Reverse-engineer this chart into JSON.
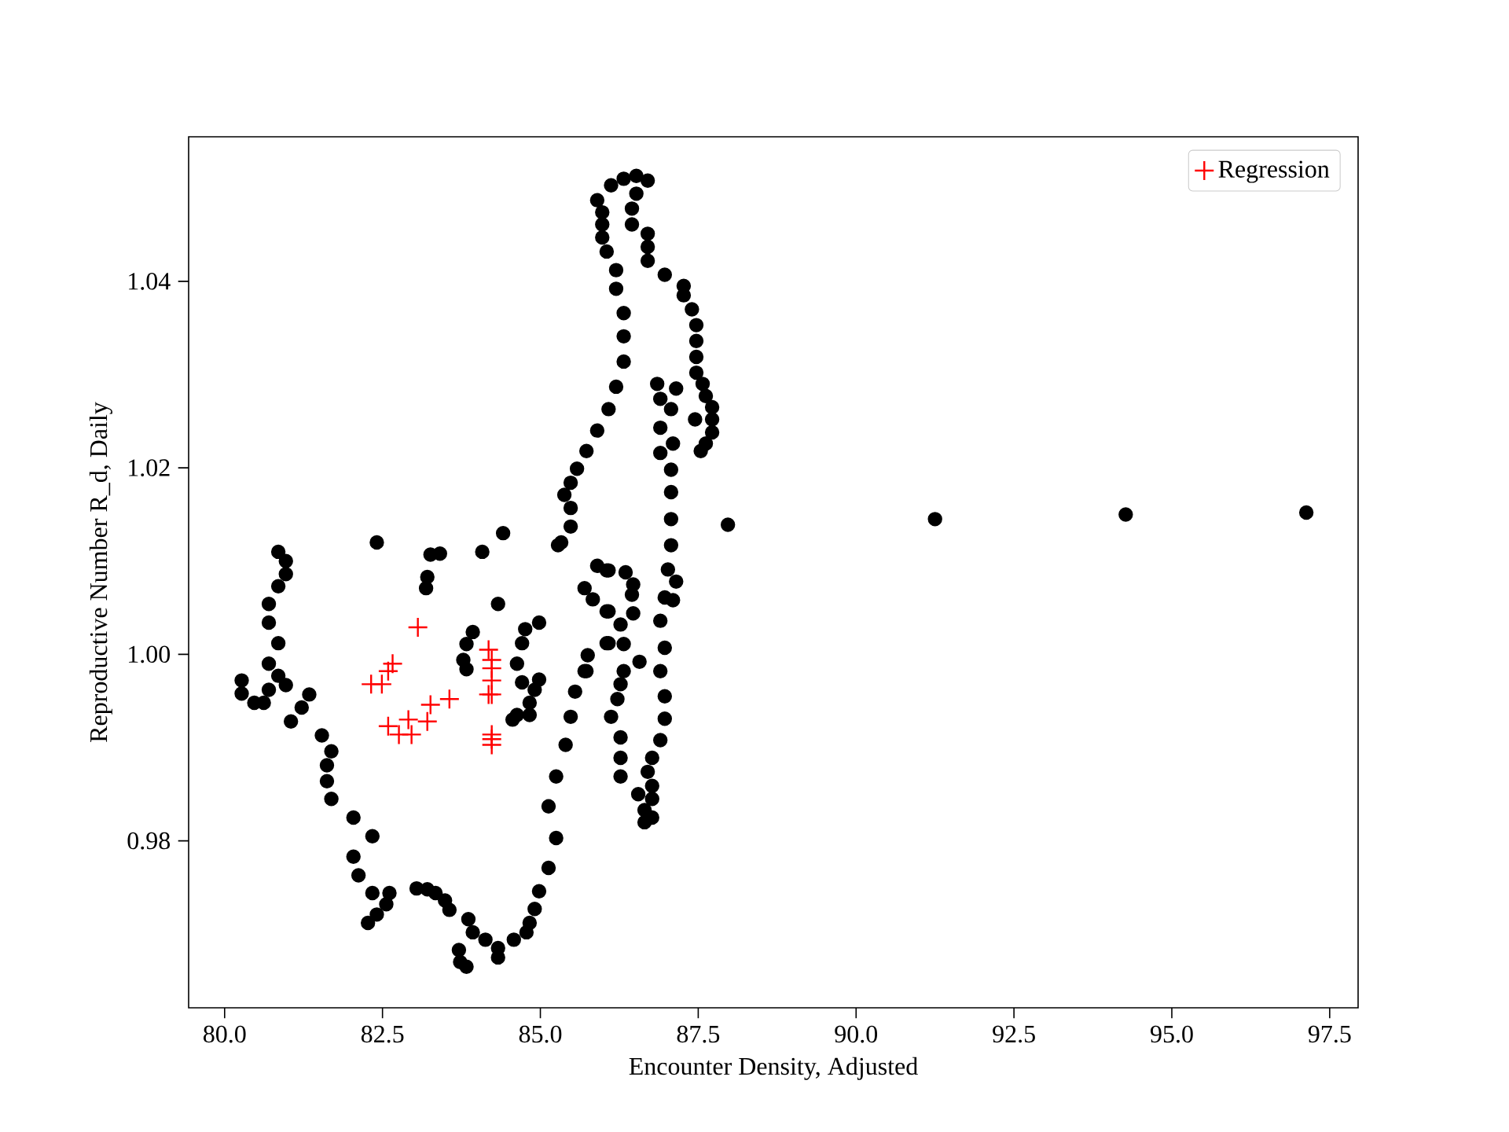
{
  "chart_data": {
    "type": "scatter",
    "xlabel": "Encounter Density, Adjusted",
    "ylabel": "Reproductive Number R_d, Daily",
    "xlim": [
      79.43,
      97.95
    ],
    "ylim": [
      0.9621,
      1.0555
    ],
    "xticks": [
      {
        "value": 80,
        "label": "80.0"
      },
      {
        "value": 82.5,
        "label": "82.5"
      },
      {
        "value": 85,
        "label": "85.0"
      },
      {
        "value": 87.5,
        "label": "87.5"
      },
      {
        "value": 90,
        "label": "90.0"
      },
      {
        "value": 92.5,
        "label": "92.5"
      },
      {
        "value": 95,
        "label": "95.0"
      },
      {
        "value": 97.5,
        "label": "97.5"
      }
    ],
    "yticks": [
      0.98,
      {
        "value": 1.0,
        "label": "1.00"
      },
      1.02,
      1.04
    ],
    "legend": "top right",
    "grid": false,
    "series": [
      {
        "color": "#000000",
        "marker": "circle",
        "x": [
          80.85,
          80.97,
          80.97,
          80.85,
          80.7,
          80.7,
          80.85,
          80.7,
          80.85,
          80.97,
          80.27,
          80.27,
          80.47,
          80.62,
          80.7,
          81.22,
          81.34,
          81.05,
          81.54,
          81.69,
          81.62,
          81.62,
          81.69,
          82.04,
          82.34,
          82.04,
          82.12,
          82.34,
          82.61,
          82.56,
          82.41,
          82.27,
          83.04,
          83.21,
          83.34,
          83.49,
          83.56,
          83.71,
          83.73,
          83.83,
          83.86,
          83.93,
          84.13,
          84.33,
          84.33,
          84.58,
          84.78,
          84.83,
          84.91,
          84.98,
          85.13,
          85.25,
          85.13,
          85.25,
          85.4,
          85.48,
          85.55,
          85.7,
          85.75,
          86.05,
          86.05,
          85.83,
          85.7,
          86.05,
          85.9,
          82.41,
          83.26,
          83.41,
          83.21,
          83.19,
          84.08,
          84.41,
          84.33,
          83.93,
          83.83,
          83.78,
          83.83,
          84.98,
          84.76,
          84.71,
          84.63,
          84.71,
          84.98,
          84.91,
          84.83,
          84.83,
          84.63,
          84.56,
          85.33,
          85.38,
          85.48,
          85.48,
          85.28,
          87.07,
          87.07,
          87.07,
          87.02,
          87.97,
          86.08,
          86.35,
          86.47,
          86.45,
          86.47,
          86.27,
          86.32,
          86.57,
          86.32,
          86.27,
          86.22,
          86.12,
          86.27,
          86.27,
          86.27,
          86.08,
          86.08,
          85.73,
          86.77,
          86.7,
          86.77,
          86.55,
          86.77,
          86.65,
          86.77,
          86.65,
          86.9,
          86.97,
          86.9,
          86.97,
          86.97,
          86.9,
          87.15,
          87.1,
          86.97,
          86.52,
          86.7,
          86.32,
          86.12,
          85.9,
          85.98,
          85.98,
          85.98,
          86.05,
          86.2,
          86.2,
          86.32,
          86.32,
          86.32,
          86.2,
          86.08,
          85.9,
          85.73,
          85.58,
          85.48,
          86.45,
          86.52,
          86.45,
          86.7,
          86.7,
          86.7,
          86.97,
          87.27,
          87.27,
          87.4,
          87.47,
          87.47,
          87.47,
          87.47,
          87.57,
          87.62,
          87.72,
          87.72,
          87.72,
          87.62,
          87.54,
          86.85,
          87.15,
          86.9,
          87.07,
          87.45,
          86.9,
          87.1,
          86.9,
          87.07,
          91.25,
          94.27,
          97.13
        ],
        "values": [
          1.011,
          1.01,
          1.0086,
          1.0073,
          1.0054,
          1.0034,
          1.0012,
          0.999,
          0.9977,
          0.9967,
          0.9972,
          0.9958,
          0.9948,
          0.9948,
          0.9962,
          0.9943,
          0.9957,
          0.9928,
          0.9913,
          0.9896,
          0.9881,
          0.9864,
          0.9845,
          0.9825,
          0.9805,
          0.9783,
          0.9763,
          0.9744,
          0.9744,
          0.9732,
          0.9721,
          0.9712,
          0.9749,
          0.9748,
          0.9744,
          0.9736,
          0.9726,
          0.9683,
          0.967,
          0.9665,
          0.9716,
          0.9702,
          0.9694,
          0.9685,
          0.9675,
          0.9694,
          0.9702,
          0.9712,
          0.9727,
          0.9746,
          0.9771,
          0.9803,
          0.9837,
          0.9869,
          0.9903,
          0.9933,
          0.996,
          0.9982,
          0.9999,
          1.0012,
          1.0046,
          1.0059,
          1.0071,
          1.009,
          1.0095,
          1.012,
          1.0107,
          1.0108,
          1.0083,
          1.0071,
          1.011,
          1.013,
          1.0054,
          1.0024,
          1.0011,
          0.9994,
          0.9984,
          1.0034,
          1.0027,
          1.0012,
          0.999,
          0.997,
          0.9973,
          0.9962,
          0.9948,
          0.9935,
          0.9935,
          0.993,
          1.012,
          1.0171,
          1.0157,
          1.0137,
          1.0117,
          1.0174,
          1.0145,
          1.0117,
          1.0091,
          1.0139,
          1.009,
          1.0088,
          1.0075,
          1.0064,
          1.0044,
          1.0032,
          1.0011,
          0.9992,
          0.9982,
          0.9968,
          0.9952,
          0.9933,
          0.9911,
          0.9889,
          0.9869,
          1.0046,
          1.0012,
          0.9982,
          0.9889,
          0.9874,
          0.9859,
          0.985,
          0.9845,
          0.9833,
          0.9825,
          0.982,
          1.0036,
          1.0007,
          0.9982,
          0.9955,
          0.9931,
          0.9908,
          1.0078,
          1.0058,
          1.0061,
          1.0513,
          1.0508,
          1.051,
          1.0503,
          1.0487,
          1.0474,
          1.0461,
          1.0447,
          1.0432,
          1.0412,
          1.0392,
          1.0366,
          1.0341,
          1.0314,
          1.0287,
          1.0263,
          1.024,
          1.0218,
          1.0199,
          1.0184,
          1.0478,
          1.0494,
          1.0461,
          1.0451,
          1.0437,
          1.0422,
          1.0407,
          1.0395,
          1.0385,
          1.037,
          1.0353,
          1.0336,
          1.0319,
          1.0302,
          1.029,
          1.0277,
          1.0265,
          1.0252,
          1.0238,
          1.0226,
          1.0218,
          1.029,
          1.0285,
          1.0274,
          1.0263,
          1.0252,
          1.0243,
          1.0226,
          1.0216,
          1.0198,
          1.0145,
          1.015,
          1.0152
        ]
      },
      {
        "name": "Regression",
        "color": "#ff0000",
        "marker": "cross",
        "x": [
          83.06,
          82.66,
          82.59,
          82.49,
          82.32,
          82.59,
          82.91,
          82.76,
          82.96,
          83.21,
          83.26,
          83.56,
          84.18,
          84.23,
          84.23,
          84.23,
          84.23,
          84.18,
          84.23,
          84.23,
          84.23
        ],
        "values": [
          1.0029,
          0.999,
          0.9982,
          0.9968,
          0.9968,
          0.9923,
          0.993,
          0.9914,
          0.9914,
          0.9928,
          0.9946,
          0.9952,
          1.0005,
          0.9994,
          0.9985,
          0.9972,
          0.9957,
          0.9957,
          0.9914,
          0.9909,
          0.9903
        ]
      }
    ]
  }
}
